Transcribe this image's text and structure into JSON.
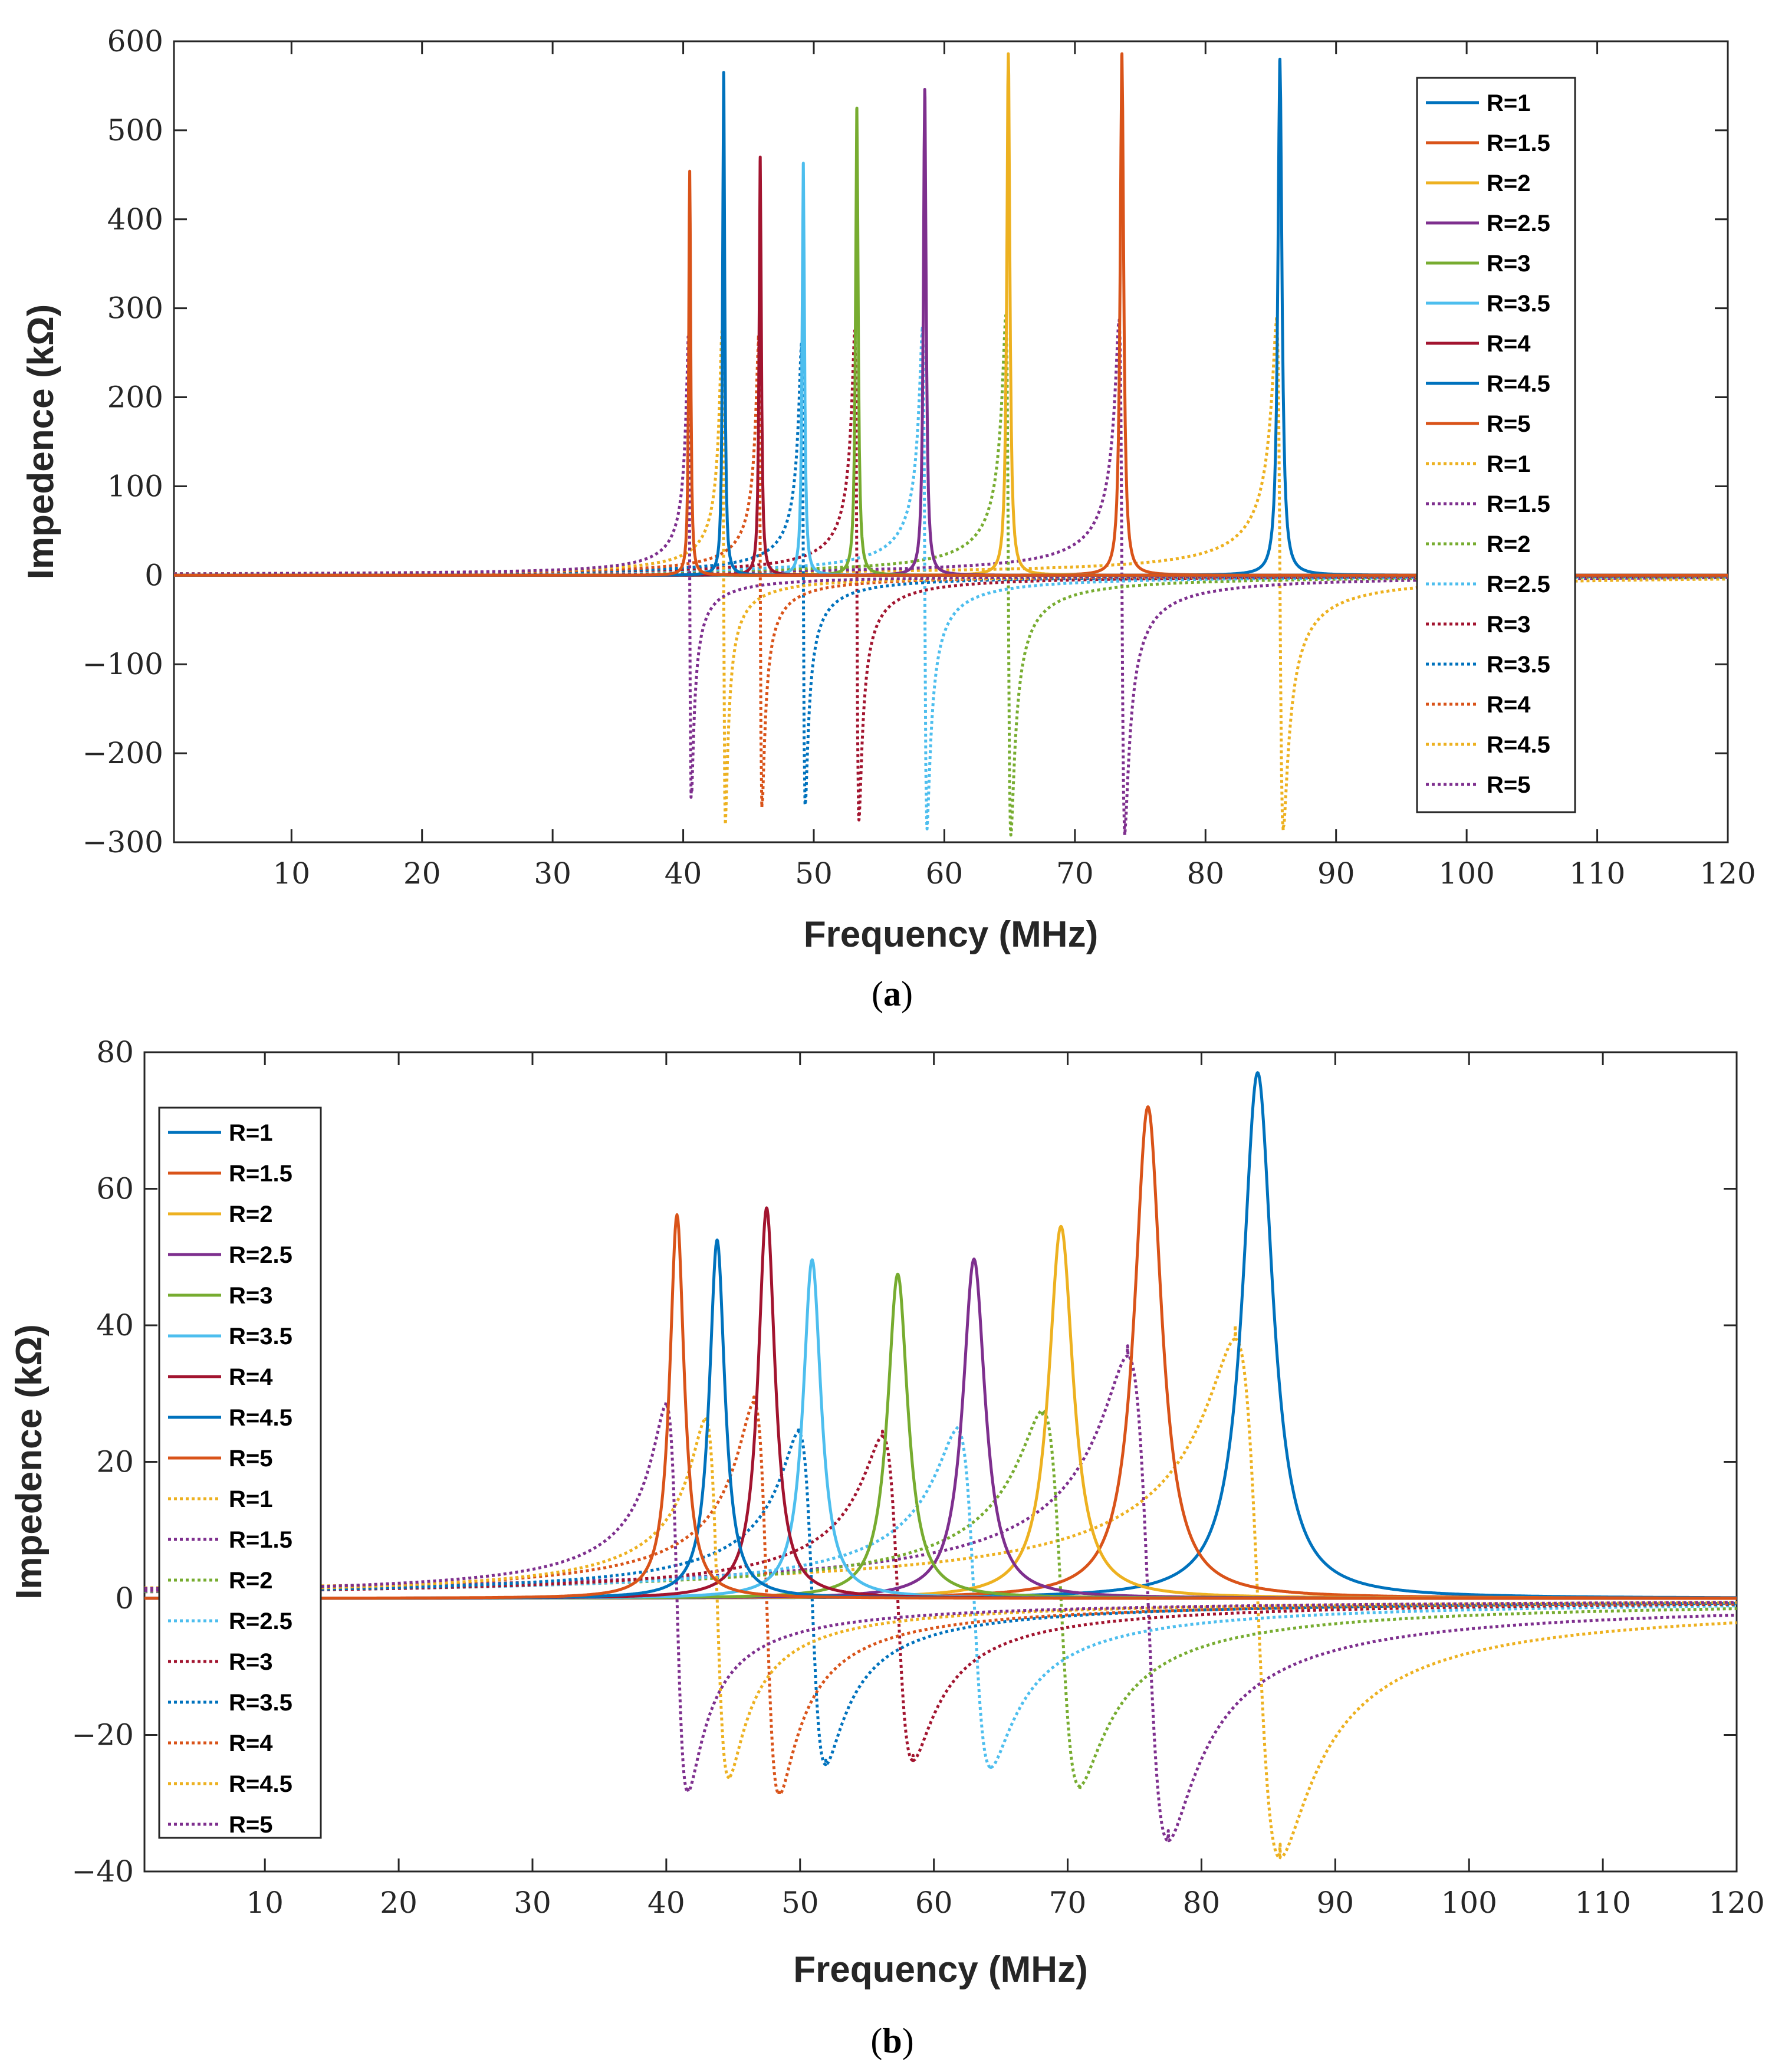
{
  "colors": {
    "blue": "#0072BD",
    "orange": "#D95319",
    "yellow": "#EDB120",
    "purple": "#7E2F8E",
    "green": "#77AC30",
    "cyan": "#4DBEEE",
    "red": "#A2142F"
  },
  "chart_data": [
    {
      "type": "line",
      "panel": "a",
      "caption": {
        "open": "(",
        "letter": "a",
        "close": ")"
      },
      "xlabel": "Frequency (MHz)",
      "ylabel": "Impedence  (kΩ)",
      "xlim": [
        1,
        120
      ],
      "ylim": [
        -300,
        600
      ],
      "xticks": [
        10,
        20,
        30,
        40,
        50,
        60,
        70,
        80,
        90,
        100,
        110,
        120
      ],
      "yticks": [
        -300,
        -200,
        -100,
        0,
        100,
        200,
        300,
        400,
        500,
        600
      ],
      "ytick_labels": [
        "−300",
        "−200",
        "−100",
        "0",
        "100",
        "200",
        "300",
        "400",
        "500",
        "600"
      ],
      "legend_position": "top-right",
      "legend": [
        "R=1",
        "R=1.5",
        "R=2",
        "R=2.5",
        "R=3",
        "R=3.5",
        "R=4",
        "R=4.5",
        "R=5",
        "R=1",
        "R=1.5",
        "R=2",
        "R=2.5",
        "R=3",
        "R=3.5",
        "R=4",
        "R=4.5",
        "R=5"
      ],
      "series": [
        {
          "name": "R=1",
          "style": "solid",
          "color": "#0072BD",
          "resonance_mhz": 85.7,
          "peak": 580
        },
        {
          "name": "R=1.5",
          "style": "solid",
          "color": "#D95319",
          "resonance_mhz": 73.6,
          "peak": 586
        },
        {
          "name": "R=2",
          "style": "solid",
          "color": "#EDB120",
          "resonance_mhz": 64.9,
          "peak": 586
        },
        {
          "name": "R=2.5",
          "style": "solid",
          "color": "#7E2F8E",
          "resonance_mhz": 58.5,
          "peak": 546
        },
        {
          "name": "R=3",
          "style": "solid",
          "color": "#77AC30",
          "resonance_mhz": 53.3,
          "peak": 525
        },
        {
          "name": "R=3.5",
          "style": "solid",
          "color": "#4DBEEE",
          "resonance_mhz": 49.2,
          "peak": 463
        },
        {
          "name": "R=4",
          "style": "solid",
          "color": "#A2142F",
          "resonance_mhz": 45.9,
          "peak": 470
        },
        {
          "name": "R=4.5",
          "style": "solid",
          "color": "#0072BD",
          "resonance_mhz": 43.1,
          "peak": 565
        },
        {
          "name": "R=5",
          "style": "solid",
          "color": "#D95319",
          "resonance_mhz": 40.5,
          "peak": 454
        },
        {
          "name": "R=1",
          "style": "dotted",
          "color": "#EDB120",
          "resonance_mhz": 85.7,
          "max": 290,
          "min": -283
        },
        {
          "name": "R=1.5",
          "style": "dotted",
          "color": "#7E2F8E",
          "resonance_mhz": 73.6,
          "max": 283,
          "min": -292
        },
        {
          "name": "R=2",
          "style": "dotted",
          "color": "#77AC30",
          "resonance_mhz": 64.9,
          "max": 292,
          "min": -292
        },
        {
          "name": "R=2.5",
          "style": "dotted",
          "color": "#4DBEEE",
          "resonance_mhz": 58.5,
          "max": 275,
          "min": -285
        },
        {
          "name": "R=3",
          "style": "dotted",
          "color": "#A2142F",
          "resonance_mhz": 53.3,
          "max": 275,
          "min": -275
        },
        {
          "name": "R=3.5",
          "style": "dotted",
          "color": "#0072BD",
          "resonance_mhz": 49.2,
          "max": 260,
          "min": -258
        },
        {
          "name": "R=4",
          "style": "dotted",
          "color": "#D95319",
          "resonance_mhz": 45.9,
          "max": 270,
          "min": -255
        },
        {
          "name": "R=4.5",
          "style": "dotted",
          "color": "#EDB120",
          "resonance_mhz": 43.1,
          "max": 275,
          "min": -280
        },
        {
          "name": "R=5",
          "style": "dotted",
          "color": "#7E2F8E",
          "resonance_mhz": 40.5,
          "max": 268,
          "min": -240
        }
      ]
    },
    {
      "type": "line",
      "panel": "b",
      "caption": {
        "open": "(",
        "letter": "b",
        "close": ")"
      },
      "xlabel": "Frequency (MHz)",
      "ylabel": "Impedence  (kΩ)",
      "xlim": [
        1,
        120
      ],
      "ylim": [
        -40,
        80
      ],
      "xticks": [
        10,
        20,
        30,
        40,
        50,
        60,
        70,
        80,
        90,
        100,
        110,
        120
      ],
      "yticks": [
        -40,
        -20,
        0,
        20,
        40,
        60,
        80
      ],
      "ytick_labels": [
        "−40",
        "−20",
        "0",
        "20",
        "40",
        "60",
        "80"
      ],
      "legend_position": "top-left",
      "legend": [
        "R=1",
        "R=1.5",
        "R=2",
        "R=2.5",
        "R=3",
        "R=3.5",
        "R=4",
        "R=4.5",
        "R=5",
        "R=1",
        "R=1.5",
        "R=2",
        "R=2.5",
        "R=3",
        "R=3.5",
        "R=4",
        "R=4.5",
        "R=5"
      ],
      "series": [
        {
          "name": "R=1",
          "style": "solid",
          "color": "#0072BD",
          "resonance_mhz": 84.2,
          "peak": 77
        },
        {
          "name": "R=1.5",
          "style": "solid",
          "color": "#D95319",
          "resonance_mhz": 76.0,
          "peak": 72
        },
        {
          "name": "R=2",
          "style": "solid",
          "color": "#EDB120",
          "resonance_mhz": 69.5,
          "peak": 54.5
        },
        {
          "name": "R=2.5",
          "style": "solid",
          "color": "#7E2F8E",
          "resonance_mhz": 63.0,
          "peak": 49.7
        },
        {
          "name": "R=3",
          "style": "solid",
          "color": "#77AC30",
          "resonance_mhz": 57.3,
          "peak": 47.5
        },
        {
          "name": "R=3.5",
          "style": "solid",
          "color": "#4DBEEE",
          "resonance_mhz": 50.9,
          "peak": 49.6
        },
        {
          "name": "R=4",
          "style": "solid",
          "color": "#A2142F",
          "resonance_mhz": 47.5,
          "peak": 57.2
        },
        {
          "name": "R=4.5",
          "style": "solid",
          "color": "#0072BD",
          "resonance_mhz": 43.8,
          "peak": 52.5
        },
        {
          "name": "R=5",
          "style": "solid",
          "color": "#D95319",
          "resonance_mhz": 40.8,
          "peak": 56.2
        },
        {
          "name": "R=1",
          "style": "dotted",
          "color": "#EDB120",
          "resonance_mhz": 84.2,
          "max": 40,
          "min": -36
        },
        {
          "name": "R=1.5",
          "style": "dotted",
          "color": "#7E2F8E",
          "resonance_mhz": 76.0,
          "max": 37,
          "min": -34
        },
        {
          "name": "R=2",
          "style": "dotted",
          "color": "#77AC30",
          "resonance_mhz": 69.5,
          "max": 27,
          "min": -28
        },
        {
          "name": "R=2.5",
          "style": "dotted",
          "color": "#4DBEEE",
          "resonance_mhz": 63.0,
          "max": 25,
          "min": -24.5
        },
        {
          "name": "R=3",
          "style": "dotted",
          "color": "#A2142F",
          "resonance_mhz": 57.3,
          "max": 24.5,
          "min": -23
        },
        {
          "name": "R=3.5",
          "style": "dotted",
          "color": "#0072BD",
          "resonance_mhz": 50.9,
          "max": 25,
          "min": -23.7
        },
        {
          "name": "R=4",
          "style": "dotted",
          "color": "#D95319",
          "resonance_mhz": 47.5,
          "max": 29.5,
          "min": -28
        },
        {
          "name": "R=4.5",
          "style": "dotted",
          "color": "#EDB120",
          "resonance_mhz": 43.8,
          "max": 26.5,
          "min": -26
        },
        {
          "name": "R=5",
          "style": "dotted",
          "color": "#7E2F8E",
          "resonance_mhz": 40.8,
          "max": 28.7,
          "min": -28
        }
      ]
    }
  ]
}
